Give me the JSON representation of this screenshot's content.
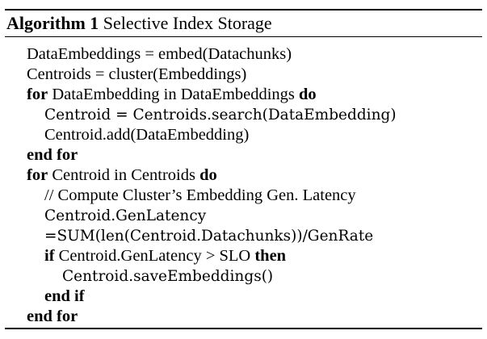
{
  "caption": {
    "label": "Algorithm 1",
    "title": "Selective Index Storage"
  },
  "lines": [
    {
      "indent": 0,
      "parts": [
        {
          "t": "DataEmbeddings = embed(Datachunks)",
          "s": "text"
        }
      ]
    },
    {
      "indent": 0,
      "parts": [
        {
          "t": "Centroids = cluster(Embeddings)",
          "s": "text"
        }
      ]
    },
    {
      "indent": 0,
      "parts": [
        {
          "t": "for",
          "s": "kw"
        },
        {
          "t": " DataEmbedding in DataEmbeddings ",
          "s": "text"
        },
        {
          "t": "do",
          "s": "kw"
        }
      ]
    },
    {
      "indent": 1,
      "parts": [
        {
          "t": "Centroid = Centroids.search(DataEmbedding)",
          "s": "math"
        }
      ]
    },
    {
      "indent": 1,
      "parts": [
        {
          "t": "Centroid.add(DataEmbedding)",
          "s": "text"
        }
      ]
    },
    {
      "indent": 0,
      "parts": [
        {
          "t": "end for",
          "s": "kw"
        }
      ]
    },
    {
      "indent": 0,
      "parts": [
        {
          "t": "for",
          "s": "kw"
        },
        {
          "t": " Centroid in Centroids ",
          "s": "text"
        },
        {
          "t": "do",
          "s": "kw"
        }
      ]
    },
    {
      "indent": 1,
      "parts": [
        {
          "t": "// Compute Cluster’s Embedding Gen. Latency",
          "s": "text"
        }
      ]
    },
    {
      "indent": 1,
      "parts": [
        {
          "t": "Centroid.GenLatency",
          "s": "math"
        }
      ]
    },
    {
      "indent": 1,
      "parts": [
        {
          "t": "=SUM(len(Centroid.Datachunks))/GenRate",
          "s": "math"
        }
      ]
    },
    {
      "indent": 1,
      "parts": [
        {
          "t": "if",
          "s": "kw"
        },
        {
          "t": " Centroid.GenLatency > SLO ",
          "s": "text"
        },
        {
          "t": "then",
          "s": "kw"
        }
      ]
    },
    {
      "indent": 2,
      "parts": [
        {
          "t": "Centroid.saveEmbeddings()",
          "s": "math"
        }
      ]
    },
    {
      "indent": 1,
      "parts": [
        {
          "t": "end if",
          "s": "kw"
        }
      ]
    },
    {
      "indent": 0,
      "parts": [
        {
          "t": "end for",
          "s": "kw"
        }
      ]
    }
  ]
}
